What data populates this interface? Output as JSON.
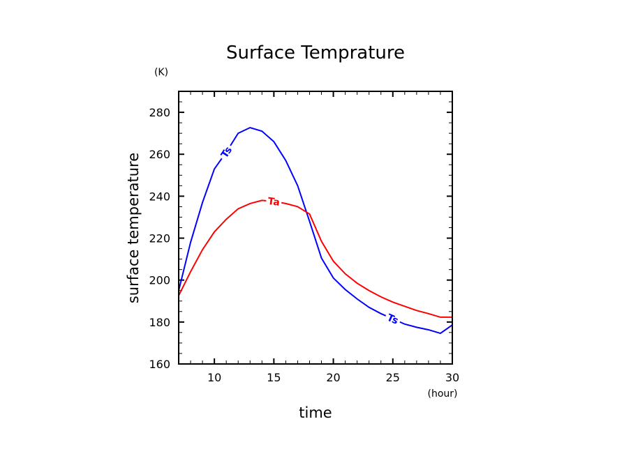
{
  "chart_data": {
    "type": "line",
    "title": "Surface Temprature",
    "xlabel": "time",
    "ylabel": "surface temperature",
    "xunit": "(hour)",
    "yunit": "(K)",
    "xlim": [
      7,
      30
    ],
    "ylim": [
      160,
      290
    ],
    "xticks": [
      10,
      15,
      20,
      25,
      30
    ],
    "yticks": [
      160,
      180,
      200,
      220,
      240,
      260,
      280
    ],
    "xticklabels": [
      "10",
      "15",
      "20",
      "25",
      "30"
    ],
    "yticklabels": [
      "160",
      "180",
      "200",
      "220",
      "240",
      "260",
      "280"
    ],
    "grid": false,
    "x": [
      7,
      8,
      9,
      10,
      11,
      12,
      13,
      14,
      15,
      16,
      17,
      18,
      19,
      20,
      21,
      22,
      23,
      24,
      25,
      26,
      27,
      28,
      29,
      30
    ],
    "series": [
      {
        "name": "Ts",
        "color": "#0000ff",
        "values": [
          195,
          218,
          237,
          253,
          261,
          270,
          272.7,
          271,
          266,
          257,
          245,
          228,
          210.5,
          201,
          195.5,
          191,
          187,
          184,
          181.5,
          179,
          177.5,
          176.3,
          174.6,
          178.6
        ],
        "labels_at": [
          11,
          25
        ]
      },
      {
        "name": "Ta",
        "color": "#ff0000",
        "values": [
          192.6,
          204,
          214.5,
          223,
          229,
          234,
          236.5,
          238,
          237.5,
          236.5,
          235,
          231.5,
          218.5,
          209,
          203,
          198.5,
          195,
          192,
          189.5,
          187.5,
          185.5,
          184,
          182.3,
          182.3
        ],
        "labels_at": [
          15
        ]
      }
    ]
  }
}
